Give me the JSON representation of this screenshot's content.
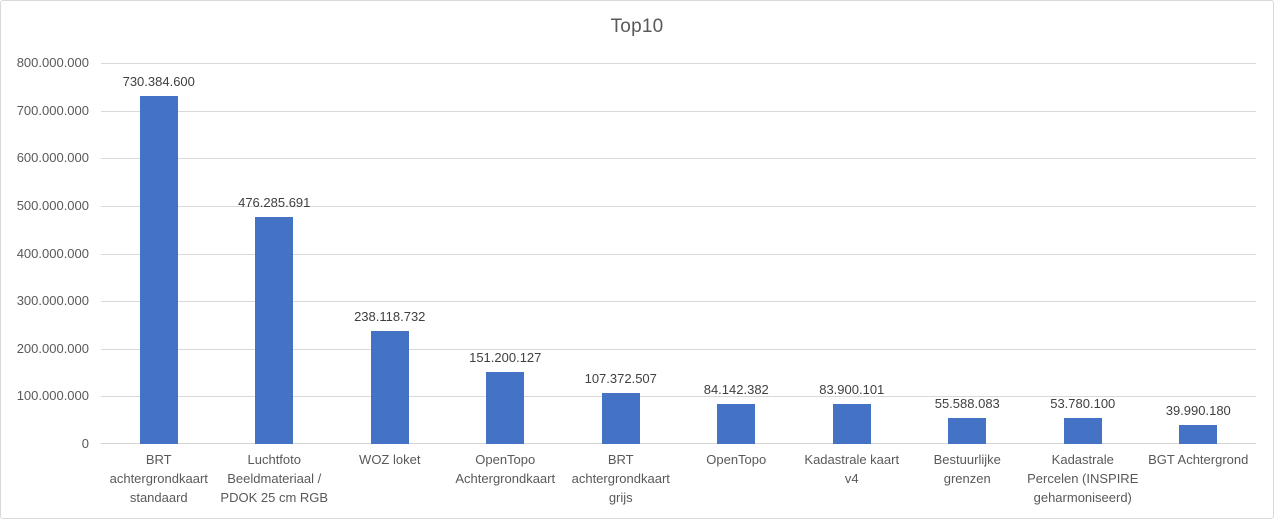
{
  "colors": {
    "bar-color": "#4472C4",
    "grid-color": "#D9D9D9",
    "axis-line-color": "#D6D6D6",
    "axis-label-color": "#595959",
    "data-label-color": "#404040",
    "title-color": "#595959",
    "border-color": "#D9D9D9",
    "bg": "#FFFFFF"
  },
  "chart_data": {
    "type": "bar",
    "title": "Top10",
    "xlabel": "",
    "ylabel": "",
    "ylim": [
      0,
      800000000
    ],
    "grid": true,
    "legend": false,
    "bar_color": "#4472C4",
    "categories": [
      "BRT\nachtergrondkaart\nstandaard",
      "Luchtfoto\nBeeldmateriaal /\nPDOK 25 cm RGB",
      "WOZ loket",
      "OpenTopo\nAchtergrondkaart",
      "BRT\nachtergrondkaart\ngrijs",
      "OpenTopo",
      "Kadastrale kaart\nv4",
      "Bestuurlijke\ngrenzen",
      "Kadastrale\nPercelen (INSPIRE\ngeharmoniseerd)",
      "BGT Achtergrond"
    ],
    "values": [
      730384600,
      476285691,
      238118732,
      151200127,
      107372507,
      84142382,
      83900101,
      55588083,
      53780100,
      39990180
    ],
    "value_labels": [
      "730.384.600",
      "476.285.691",
      "238.118.732",
      "151.200.127",
      "107.372.507",
      "84.142.382",
      "83.900.101",
      "55.588.083",
      "53.780.100",
      "39.990.180"
    ],
    "y_ticks": [
      {
        "value": 0,
        "label": "0"
      },
      {
        "value": 100000000,
        "label": "100.000.000"
      },
      {
        "value": 200000000,
        "label": "200.000.000"
      },
      {
        "value": 300000000,
        "label": "300.000.000"
      },
      {
        "value": 400000000,
        "label": "400.000.000"
      },
      {
        "value": 500000000,
        "label": "500.000.000"
      },
      {
        "value": 600000000,
        "label": "600.000.000"
      },
      {
        "value": 700000000,
        "label": "700.000.000"
      },
      {
        "value": 800000000,
        "label": "800.000.000"
      }
    ]
  }
}
